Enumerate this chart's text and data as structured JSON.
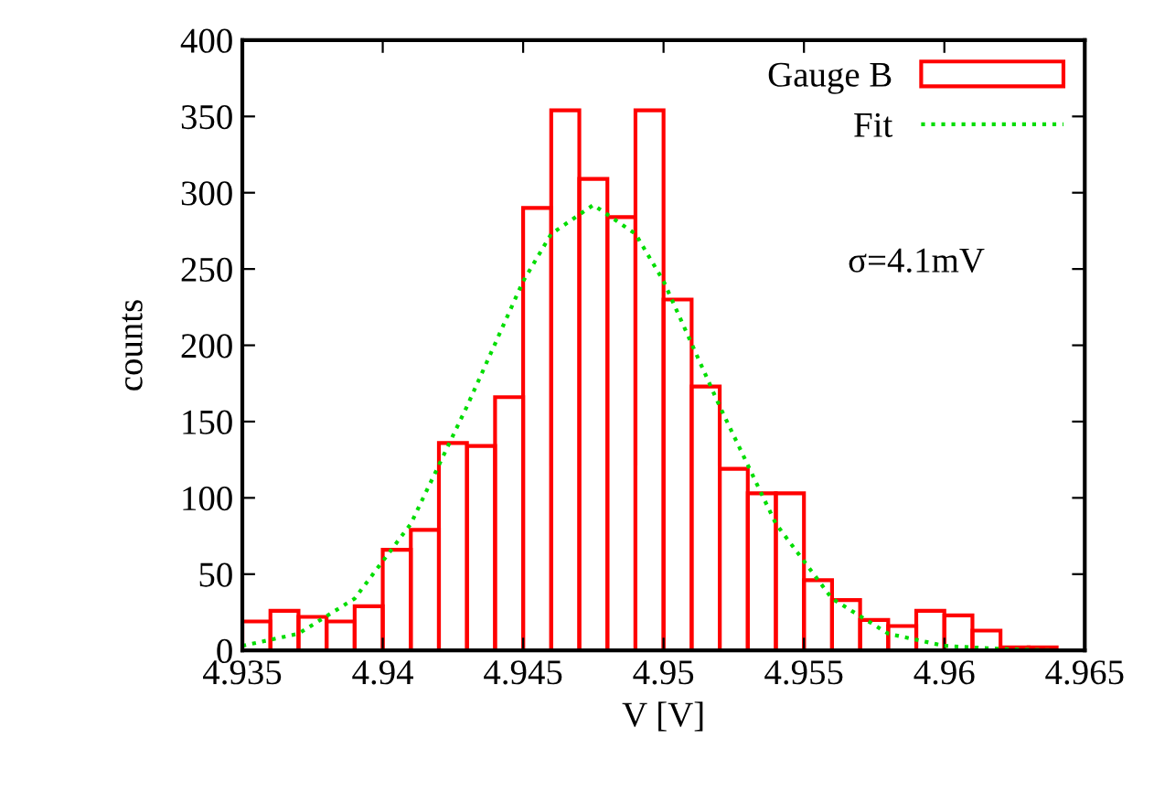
{
  "chart_data": {
    "type": "histogram",
    "xlabel": "V [V]",
    "ylabel": "counts",
    "xlim": [
      4.935,
      4.965
    ],
    "xticks": [
      4.935,
      4.94,
      4.945,
      4.95,
      4.955,
      4.96,
      4.965
    ],
    "ylim": [
      0,
      400
    ],
    "yticks": [
      0,
      50,
      100,
      150,
      200,
      250,
      300,
      350,
      400
    ],
    "grid": false,
    "legend": "top right",
    "annotations": [
      "σ=4.1mV"
    ],
    "series": [
      {
        "name": "Gauge B",
        "color": "#ff0000",
        "bins": [
          4.935,
          4.936,
          4.937,
          4.938,
          4.939,
          4.94,
          4.941,
          4.942,
          4.943,
          4.944,
          4.945,
          4.946,
          4.947,
          4.948,
          4.949,
          4.95,
          4.951,
          4.952,
          4.953,
          4.954,
          4.955,
          4.956,
          4.957,
          4.958,
          4.959,
          4.96,
          4.961,
          4.962,
          4.963,
          4.964
        ],
        "values": [
          19,
          26,
          22,
          19,
          29,
          66,
          79,
          136,
          134,
          166,
          290,
          354,
          309,
          284,
          354,
          230,
          173,
          119,
          103,
          103,
          46,
          33,
          20,
          16,
          26,
          23,
          13,
          2,
          2
        ]
      },
      {
        "name": "Fit",
        "type": "line",
        "color": "#00dd00",
        "line_style": "dotted",
        "x": [
          4.935,
          4.937,
          4.939,
          4.941,
          4.943,
          4.945,
          4.946,
          4.9475,
          4.949,
          4.95,
          4.952,
          4.954,
          4.956,
          4.958,
          4.96,
          4.962,
          4.964
        ],
        "values": [
          3,
          11,
          34,
          83,
          160,
          242,
          273,
          292,
          273,
          242,
          160,
          83,
          34,
          11,
          3,
          1,
          0
        ]
      }
    ]
  }
}
